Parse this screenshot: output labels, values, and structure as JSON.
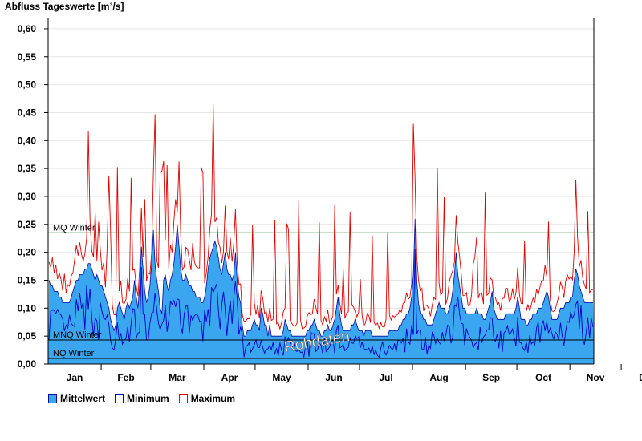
{
  "chart_data": {
    "type": "area",
    "title": "Abfluss Tageswerte [m³/s]",
    "ylabel": "",
    "xlabel": "",
    "ylim": [
      0,
      0.62
    ],
    "yticks": [
      "0,00",
      "0,05",
      "0,10",
      "0,15",
      "0,20",
      "0,25",
      "0,30",
      "0,35",
      "0,40",
      "0,45",
      "0,50",
      "0,55",
      "0,60"
    ],
    "months": [
      "Jan",
      "Feb",
      "Mar",
      "Apr",
      "May",
      "Jun",
      "Jul",
      "Aug",
      "Sep",
      "Oct",
      "Nov",
      "Dec"
    ],
    "month_days": [
      31,
      29,
      31,
      30,
      31,
      30,
      31,
      31,
      30,
      31,
      30,
      31
    ],
    "grid": "horizontal",
    "legend_position": "bottom-left",
    "reference_lines": [
      {
        "name": "MQ Winter",
        "value": 0.235,
        "color": "#2e7d32"
      },
      {
        "name": "MNQ Winter",
        "value": 0.043,
        "color": "#000000"
      },
      {
        "name": "NQ Winter",
        "value": 0.01,
        "color": "#000000"
      }
    ],
    "watermark": "Rohdaten",
    "series": [
      {
        "name": "Mittelwert",
        "color": "#3aa6f0",
        "edge": "#0a0aa0",
        "style": "filled-area",
        "values": [
          0.15,
          0.14,
          0.14,
          0.13,
          0.13,
          0.13,
          0.12,
          0.12,
          0.11,
          0.11,
          0.11,
          0.11,
          0.11,
          0.12,
          0.13,
          0.14,
          0.15,
          0.15,
          0.16,
          0.16,
          0.16,
          0.17,
          0.17,
          0.18,
          0.18,
          0.17,
          0.16,
          0.15,
          0.16,
          0.15,
          0.14,
          0.14,
          0.13,
          0.12,
          0.11,
          0.1,
          0.08,
          0.07,
          0.06,
          0.07,
          0.1,
          0.11,
          0.1,
          0.09,
          0.08,
          0.1,
          0.11,
          0.1,
          0.11,
          0.12,
          0.15,
          0.12,
          0.1,
          0.14,
          0.21,
          0.17,
          0.13,
          0.11,
          0.12,
          0.14,
          0.18,
          0.24,
          0.18,
          0.15,
          0.13,
          0.1,
          0.09,
          0.15,
          0.16,
          0.14,
          0.13,
          0.15,
          0.16,
          0.18,
          0.21,
          0.25,
          0.21,
          0.17,
          0.15,
          0.15,
          0.16,
          0.15,
          0.14,
          0.14,
          0.13,
          0.13,
          0.12,
          0.12,
          0.12,
          0.11,
          0.11,
          0.12,
          0.14,
          0.17,
          0.19,
          0.2,
          0.21,
          0.22,
          0.21,
          0.19,
          0.17,
          0.16,
          0.18,
          0.2,
          0.17,
          0.16,
          0.16,
          0.15,
          0.16,
          0.2,
          0.15,
          0.12,
          0.11,
          0.07,
          0.05,
          0.05,
          0.06,
          0.06,
          0.06,
          0.07,
          0.08,
          0.07,
          0.07,
          0.06,
          0.1,
          0.09,
          0.07,
          0.07,
          0.05,
          0.07,
          0.05,
          0.05,
          0.05,
          0.05,
          0.05,
          0.05,
          0.05,
          0.06,
          0.08,
          0.07,
          0.06,
          0.06,
          0.05,
          0.05,
          0.05,
          0.05,
          0.05,
          0.05,
          0.05,
          0.05,
          0.05,
          0.06,
          0.06,
          0.07,
          0.07,
          0.08,
          0.07,
          0.06,
          0.06,
          0.05,
          0.05,
          0.06,
          0.06,
          0.07,
          0.06,
          0.06,
          0.07,
          0.08,
          0.1,
          0.12,
          0.09,
          0.07,
          0.06,
          0.06,
          0.06,
          0.06,
          0.06,
          0.07,
          0.07,
          0.08,
          0.07,
          0.06,
          0.06,
          0.06,
          0.05,
          0.06,
          0.06,
          0.06,
          0.06,
          0.05,
          0.05,
          0.05,
          0.05,
          0.05,
          0.05,
          0.05,
          0.05,
          0.05,
          0.05,
          0.06,
          0.06,
          0.06,
          0.06,
          0.06,
          0.06,
          0.07,
          0.07,
          0.08,
          0.08,
          0.09,
          0.09,
          0.1,
          0.12,
          0.16,
          0.26,
          0.15,
          0.11,
          0.09,
          0.09,
          0.08,
          0.08,
          0.07,
          0.07,
          0.07,
          0.07,
          0.08,
          0.09,
          0.1,
          0.11,
          0.1,
          0.1,
          0.1,
          0.09,
          0.09,
          0.1,
          0.11,
          0.13,
          0.16,
          0.2,
          0.16,
          0.14,
          0.12,
          0.1,
          0.1,
          0.09,
          0.09,
          0.09,
          0.09,
          0.09,
          0.09,
          0.1,
          0.09,
          0.09,
          0.09,
          0.08,
          0.08,
          0.09,
          0.1,
          0.11,
          0.13,
          0.1,
          0.09,
          0.08,
          0.08,
          0.08,
          0.08,
          0.08,
          0.09,
          0.09,
          0.09,
          0.09,
          0.09,
          0.09,
          0.1,
          0.12,
          0.1,
          0.08,
          0.08,
          0.08,
          0.07,
          0.07,
          0.08,
          0.08,
          0.09,
          0.09,
          0.09,
          0.1,
          0.1,
          0.1,
          0.11,
          0.12,
          0.13,
          0.12,
          0.1,
          0.08,
          0.08,
          0.08,
          0.08,
          0.09,
          0.1,
          0.1,
          0.1,
          0.11,
          0.11,
          0.11,
          0.12,
          0.12,
          0.15,
          0.17,
          0.16,
          0.14,
          0.13,
          0.12,
          0.11,
          0.11,
          0.11,
          0.11,
          0.11,
          0.11
        ]
      },
      {
        "name": "Minimum",
        "color": "#0000c8",
        "style": "line"
      },
      {
        "name": "Maximum",
        "color": "#e00000",
        "style": "line"
      }
    ]
  }
}
